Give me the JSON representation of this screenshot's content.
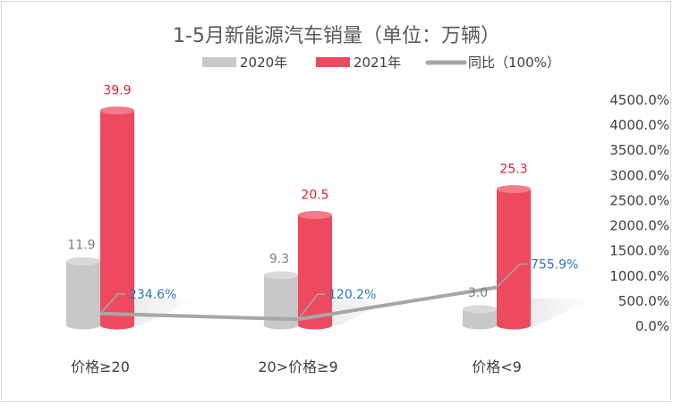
{
  "chart_data": {
    "type": "bar",
    "title": "1-5月新能源汽车销量（单位：万辆）",
    "categories": [
      "价格≥20",
      "20>价格≥9",
      "价格<9"
    ],
    "series": [
      {
        "name": "2020年",
        "kind": "bar",
        "axis": "primary",
        "values": [
          11.9,
          9.3,
          3.0
        ],
        "labels": [
          "11.9",
          "9.3",
          "3.0"
        ]
      },
      {
        "name": "2021年",
        "kind": "bar",
        "axis": "primary",
        "values": [
          39.9,
          20.5,
          25.3
        ],
        "labels": [
          "39.9",
          "20.5",
          "25.3"
        ]
      },
      {
        "name": "同比（100%）",
        "kind": "line",
        "axis": "secondary",
        "values": [
          234.6,
          120.2,
          755.9
        ],
        "labels": [
          "234.6%",
          "120.2%",
          "755.9%"
        ]
      }
    ],
    "y_primary": {
      "range": [
        0,
        42
      ],
      "ticks_shown": false
    },
    "y_secondary": {
      "range": [
        0,
        4500
      ],
      "ticks": [
        0,
        500,
        1000,
        1500,
        2000,
        2500,
        3000,
        3500,
        4000,
        4500
      ],
      "tick_labels": [
        "0.0%",
        "500.0%",
        "1000.0%",
        "1500.0%",
        "2000.0%",
        "2500.0%",
        "3000.0%",
        "3500.0%",
        "4000.0%",
        "4500.0%"
      ]
    },
    "legend_position": "top",
    "colors": {
      "2020": "#c8c8c8",
      "2021": "#ee4a5f",
      "line": "#a6a6a6",
      "label_2021": "#e0202e",
      "label_line": "#2e75b6",
      "label_2020": "#7f7f7f",
      "title": "#595959",
      "axis_text": "#404040"
    }
  }
}
